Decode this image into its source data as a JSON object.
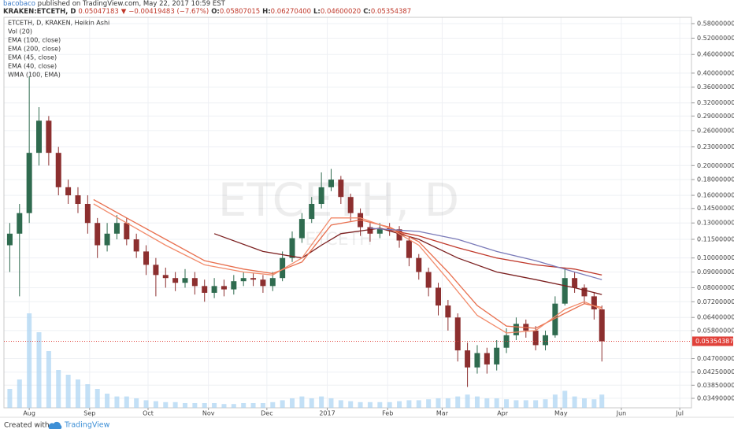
{
  "header": {
    "author": "bacobaco",
    "published": "published on TradingView.com, May 22, 2017 10:59 EST",
    "symbol": "KRAKEN:ETCETH, D",
    "price": "0.05047183",
    "arrow": "▼",
    "change": "−0.00419483 (−7.67%)",
    "o_label": "O:",
    "open": "0.05807015",
    "h_label": "H:",
    "high": "0.06270400",
    "l_label": "L:",
    "low": "0.04600020",
    "c_label": "C:",
    "close": "0.05354387"
  },
  "footer": {
    "created": "Created with",
    "brand": "TradingView"
  },
  "chart_data": {
    "type": "candlestick",
    "info": "ETCETH, D, KRAKEN, Heikin Ashi",
    "watermark": "ETCETH, D",
    "watermark_sub": "ETCETH",
    "log_scale": true,
    "grid": true,
    "up_color": "#2f6b4f",
    "down_color": "#8c2f2f",
    "x": [
      -10,
      -5,
      0,
      5,
      10,
      15,
      20,
      25,
      30,
      35,
      40,
      45,
      50,
      55,
      60,
      65,
      70,
      75,
      80,
      85,
      90,
      95,
      100,
      105,
      110,
      115,
      120,
      125,
      130,
      135,
      140,
      145,
      150,
      155,
      160,
      165,
      170,
      175,
      180,
      185,
      190,
      195,
      200,
      205,
      210,
      215,
      220,
      225,
      230,
      235,
      240,
      245,
      250,
      255,
      260,
      265,
      270,
      275,
      280,
      285,
      290,
      294
    ],
    "open": [
      0.11,
      0.12,
      0.14,
      0.22,
      0.28,
      0.22,
      0.17,
      0.16,
      0.15,
      0.13,
      0.11,
      0.12,
      0.13,
      0.115,
      0.105,
      0.095,
      0.088,
      0.086,
      0.083,
      0.086,
      0.081,
      0.077,
      0.081,
      0.079,
      0.084,
      0.086,
      0.085,
      0.081,
      0.086,
      0.1,
      0.116,
      0.134,
      0.15,
      0.17,
      0.18,
      0.158,
      0.14,
      0.126,
      0.12,
      0.125,
      0.124,
      0.114,
      0.1,
      0.09,
      0.08,
      0.07,
      0.064,
      0.05,
      0.044,
      0.049,
      0.045,
      0.051,
      0.056,
      0.061,
      0.058,
      0.052,
      0.056,
      0.071,
      0.086,
      0.08,
      0.075,
      0.068
    ],
    "high": [
      0.13,
      0.15,
      0.39,
      0.31,
      0.29,
      0.23,
      0.18,
      0.17,
      0.16,
      0.135,
      0.13,
      0.138,
      0.135,
      0.12,
      0.11,
      0.1,
      0.093,
      0.09,
      0.092,
      0.09,
      0.085,
      0.086,
      0.085,
      0.088,
      0.09,
      0.089,
      0.088,
      0.09,
      0.105,
      0.122,
      0.14,
      0.158,
      0.19,
      0.195,
      0.185,
      0.162,
      0.145,
      0.13,
      0.13,
      0.13,
      0.127,
      0.117,
      0.103,
      0.093,
      0.083,
      0.073,
      0.066,
      0.053,
      0.052,
      0.051,
      0.054,
      0.059,
      0.064,
      0.063,
      0.06,
      0.058,
      0.075,
      0.093,
      0.09,
      0.082,
      0.077,
      0.07
    ],
    "low": [
      0.09,
      0.075,
      0.13,
      0.2,
      0.2,
      0.16,
      0.15,
      0.14,
      0.12,
      0.1,
      0.105,
      0.115,
      0.11,
      0.1,
      0.088,
      0.075,
      0.08,
      0.078,
      0.08,
      0.076,
      0.072,
      0.074,
      0.075,
      0.076,
      0.081,
      0.081,
      0.077,
      0.078,
      0.084,
      0.097,
      0.112,
      0.13,
      0.145,
      0.165,
      0.15,
      0.132,
      0.118,
      0.113,
      0.116,
      0.118,
      0.108,
      0.094,
      0.085,
      0.075,
      0.065,
      0.058,
      0.046,
      0.038,
      0.042,
      0.042,
      0.043,
      0.049,
      0.054,
      0.055,
      0.05,
      0.05,
      0.055,
      0.07,
      0.077,
      0.071,
      0.063,
      0.046
    ],
    "close": [
      0.12,
      0.14,
      0.22,
      0.28,
      0.22,
      0.17,
      0.16,
      0.15,
      0.13,
      0.11,
      0.12,
      0.13,
      0.115,
      0.105,
      0.095,
      0.088,
      0.086,
      0.083,
      0.086,
      0.081,
      0.077,
      0.081,
      0.079,
      0.084,
      0.086,
      0.085,
      0.081,
      0.086,
      0.1,
      0.116,
      0.134,
      0.15,
      0.17,
      0.18,
      0.158,
      0.14,
      0.126,
      0.12,
      0.125,
      0.124,
      0.114,
      0.1,
      0.09,
      0.08,
      0.07,
      0.064,
      0.05,
      0.044,
      0.049,
      0.045,
      0.051,
      0.056,
      0.061,
      0.058,
      0.052,
      0.056,
      0.071,
      0.086,
      0.08,
      0.075,
      0.068,
      0.0535
    ],
    "volume": {
      "name": "Vol (20)",
      "color": "#a9d3f2",
      "values": [
        20,
        30,
        100,
        80,
        60,
        40,
        35,
        30,
        25,
        20,
        15,
        12,
        12,
        10,
        8,
        7,
        6,
        6,
        5,
        5,
        5,
        5,
        4,
        4,
        5,
        5,
        5,
        6,
        8,
        10,
        12,
        10,
        12,
        10,
        8,
        7,
        6,
        6,
        6,
        6,
        7,
        8,
        8,
        9,
        10,
        10,
        12,
        14,
        12,
        10,
        10,
        9,
        8,
        8,
        8,
        9,
        14,
        18,
        12,
        10,
        9,
        14
      ]
    },
    "series": [
      {
        "name": "EMA (100, close)",
        "color": "#c0392b",
        "x": [
          180,
          200,
          220,
          240,
          260,
          280,
          294
        ],
        "values": [
          0.125,
          0.118,
          0.108,
          0.1,
          0.095,
          0.092,
          0.088
        ]
      },
      {
        "name": "EMA (200, close)",
        "color": "#7b1f1f",
        "x": [
          95,
          120,
          140,
          150,
          160,
          180,
          200,
          220,
          240,
          260,
          280,
          294
        ],
        "values": [
          0.12,
          0.105,
          0.1,
          0.11,
          0.12,
          0.125,
          0.115,
          0.1,
          0.09,
          0.085,
          0.08,
          0.076
        ]
      },
      {
        "name": "EMA (45, close)",
        "color": "#e8704f",
        "x": [
          33,
          50,
          70,
          90,
          110,
          125,
          140,
          155,
          170,
          185,
          200,
          215,
          230,
          245,
          260,
          275,
          285,
          294
        ],
        "values": [
          0.155,
          0.135,
          0.115,
          0.098,
          0.092,
          0.089,
          0.097,
          0.128,
          0.133,
          0.126,
          0.113,
          0.09,
          0.07,
          0.06,
          0.059,
          0.066,
          0.071,
          0.069
        ]
      },
      {
        "name": "EMA (40, close)",
        "color": "#f28b6b",
        "x": [
          33,
          50,
          70,
          90,
          110,
          125,
          140,
          155,
          170,
          185,
          200,
          215,
          230,
          245,
          260,
          275,
          285,
          294
        ],
        "values": [
          0.15,
          0.13,
          0.11,
          0.095,
          0.09,
          0.088,
          0.1,
          0.135,
          0.135,
          0.125,
          0.11,
          0.085,
          0.065,
          0.057,
          0.058,
          0.068,
          0.072,
          0.068
        ]
      },
      {
        "name": "WMA (100, EMA)",
        "color": "#7a7ab8",
        "x": [
          175,
          200,
          220,
          240,
          260,
          280,
          294
        ],
        "values": [
          0.125,
          0.122,
          0.115,
          0.105,
          0.098,
          0.09,
          0.085
        ]
      }
    ],
    "last_price": {
      "value": 0.05354387,
      "label": "0.05354387"
    },
    "last_price_color": "#e0413a",
    "xlim": [
      -13,
      340
    ],
    "xticks": [
      {
        "value": 0,
        "label": "Aug"
      },
      {
        "value": 31,
        "label": "Sep"
      },
      {
        "value": 61,
        "label": "Oct"
      },
      {
        "value": 92,
        "label": "Nov"
      },
      {
        "value": 122,
        "label": "Dec"
      },
      {
        "value": 153,
        "label": "2017"
      },
      {
        "value": 184,
        "label": "Feb"
      },
      {
        "value": 212,
        "label": "Mar"
      },
      {
        "value": 243,
        "label": "Apr"
      },
      {
        "value": 273,
        "label": "May"
      },
      {
        "value": 304,
        "label": "Jun"
      },
      {
        "value": 334,
        "label": "Jul"
      }
    ],
    "ylim": [
      0.0325,
      0.608
    ],
    "yticks": [
      {
        "value": 0.58,
        "label": "0.58000000"
      },
      {
        "value": 0.52,
        "label": "0.52000000"
      },
      {
        "value": 0.46,
        "label": "0.46000000"
      },
      {
        "value": 0.4,
        "label": "0.40000000"
      },
      {
        "value": 0.36,
        "label": "0.36000000"
      },
      {
        "value": 0.32,
        "label": "0.32000000"
      },
      {
        "value": 0.29,
        "label": "0.29000000"
      },
      {
        "value": 0.26,
        "label": "0.26000000"
      },
      {
        "value": 0.23,
        "label": "0.23000000"
      },
      {
        "value": 0.2,
        "label": "0.20000000"
      },
      {
        "value": 0.18,
        "label": "0.18000000"
      },
      {
        "value": 0.16,
        "label": "0.16000000"
      },
      {
        "value": 0.145,
        "label": "0.14500000"
      },
      {
        "value": 0.13,
        "label": "0.13000000"
      },
      {
        "value": 0.115,
        "label": "0.11500000"
      },
      {
        "value": 0.1,
        "label": "0.10000000"
      },
      {
        "value": 0.09,
        "label": "0.09000000"
      },
      {
        "value": 0.08,
        "label": "0.08000000"
      },
      {
        "value": 0.072,
        "label": "0.07200000"
      },
      {
        "value": 0.064,
        "label": "0.06400000"
      },
      {
        "value": 0.058,
        "label": "0.05800000"
      },
      {
        "value": 0.047,
        "label": "0.04700000"
      },
      {
        "value": 0.0425,
        "label": "0.04250000"
      },
      {
        "value": 0.0385,
        "label": "0.03850000"
      },
      {
        "value": 0.0349,
        "label": "0.03490000"
      }
    ]
  }
}
